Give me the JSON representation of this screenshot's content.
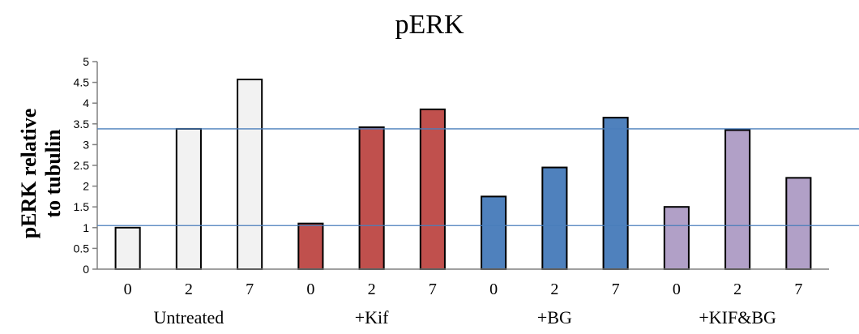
{
  "chart_data": {
    "type": "bar",
    "title": "pERK",
    "ylabel_lines": [
      "pERK relative",
      "to tubulin"
    ],
    "xlabel": "",
    "ylim": [
      0,
      5
    ],
    "yticks": [
      "0",
      "0.5",
      "1",
      "1.5",
      "2",
      "2.5",
      "3",
      "3.5",
      "4",
      "4.5",
      "5"
    ],
    "grid": false,
    "reference_lines": [
      1.05,
      3.38
    ],
    "reference_line_color": "#4a7ebb",
    "groups": [
      {
        "label": "Untreated",
        "color": "#f2f2f2",
        "categories": [
          "0",
          "2",
          "7"
        ],
        "values": [
          1.0,
          3.38,
          4.57
        ]
      },
      {
        "label": "+Kif",
        "color": "#c0504d",
        "categories": [
          "0",
          "2",
          "7"
        ],
        "values": [
          1.1,
          3.42,
          3.85
        ]
      },
      {
        "label": "+BG",
        "color": "#4f81bd",
        "categories": [
          "0",
          "2",
          "7"
        ],
        "values": [
          1.75,
          2.45,
          3.65
        ]
      },
      {
        "label": "+KIF&BG",
        "color": "#b1a0c7",
        "categories": [
          "0",
          "2",
          "7"
        ],
        "values": [
          1.5,
          3.35,
          2.2
        ]
      }
    ]
  }
}
